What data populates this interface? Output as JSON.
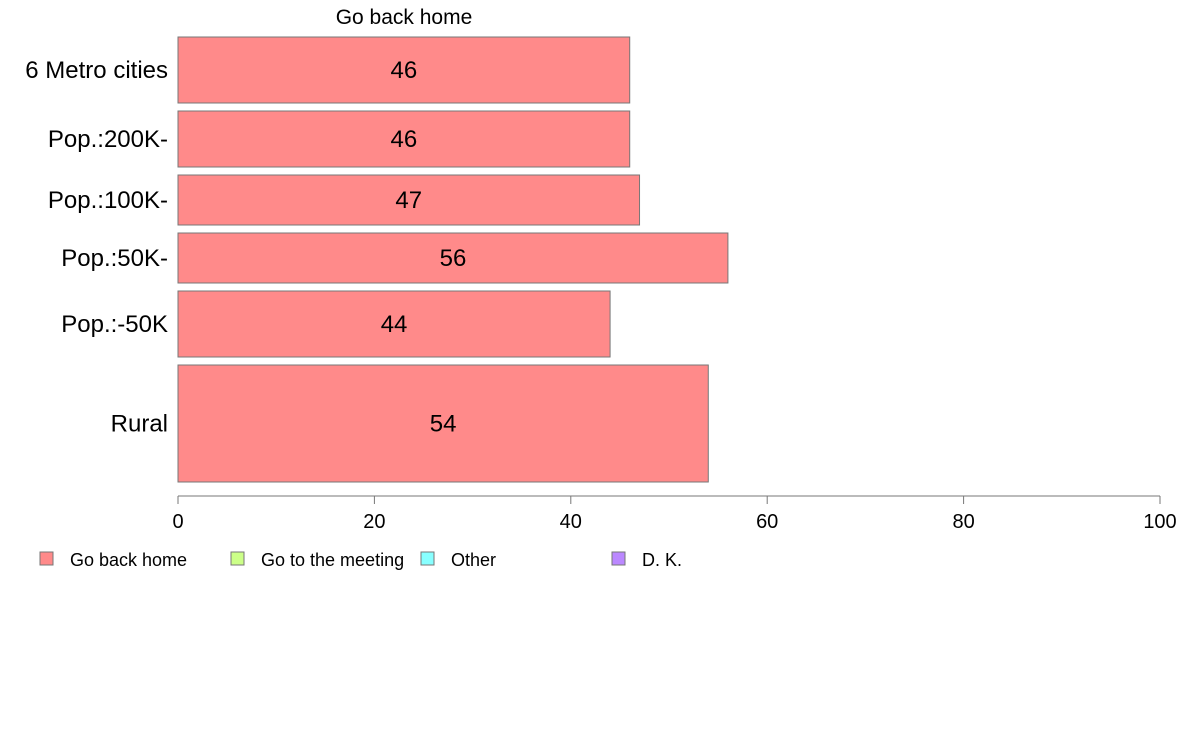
{
  "chart_data": {
    "type": "bar",
    "orientation": "horizontal",
    "title": "Go back home",
    "categories": [
      "6 Metro cities",
      "Pop.:200K-",
      "Pop.:100K-",
      "Pop.:50K-",
      "Pop.:-50K",
      "Rural"
    ],
    "series": [
      {
        "name": "Go back home",
        "color": "#ff8a8a",
        "values": [
          46,
          46,
          47,
          56,
          44,
          54
        ]
      }
    ],
    "xlim": [
      0,
      100
    ],
    "xticks": [
      0,
      20,
      40,
      60,
      80,
      100
    ],
    "xlabel": "",
    "ylabel": "",
    "grid": false,
    "legend_position": "bottom",
    "legend": [
      {
        "label": "Go back home",
        "color": "#ff8a8a"
      },
      {
        "label": "Go to the meeting",
        "color": "#ccff88"
      },
      {
        "label": "Other",
        "color": "#88ffff"
      },
      {
        "label": "D. K.",
        "color": "#bb88ff"
      }
    ]
  }
}
